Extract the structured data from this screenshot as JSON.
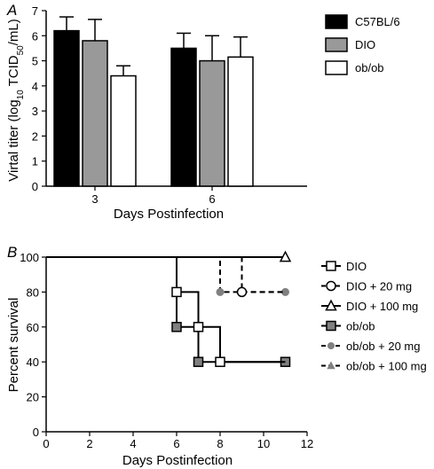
{
  "chart_data": [
    {
      "type": "bar",
      "panel_letter": "A",
      "xlabel": "Days Postinfection",
      "ylabel_parts": [
        "Virtal titer (log",
        "10",
        " TCID",
        "50",
        "/mL)"
      ],
      "categories": [
        "3",
        "6"
      ],
      "ylim": [
        0,
        7
      ],
      "yticks": [
        0,
        1,
        2,
        3,
        4,
        5,
        6,
        7
      ],
      "grid": false,
      "legend_position": "right",
      "series": [
        {
          "name": "C57BL/6",
          "color": "#000000",
          "values": [
            6.2,
            5.5
          ],
          "errors": [
            0.55,
            0.6
          ]
        },
        {
          "name": "DIO",
          "color": "#999999",
          "values": [
            5.8,
            5.0
          ],
          "errors": [
            0.85,
            1.0
          ]
        },
        {
          "name": "ob/ob",
          "color": "#ffffff",
          "values": [
            4.4,
            5.15
          ],
          "errors": [
            0.4,
            0.8
          ]
        }
      ]
    },
    {
      "type": "line",
      "panel_letter": "B",
      "xlabel": "Days Postinfection",
      "ylabel": "Percent survival",
      "xlim": [
        0,
        12
      ],
      "ylim": [
        0,
        100
      ],
      "xticks": [
        0,
        2,
        4,
        6,
        8,
        10,
        12
      ],
      "yticks": [
        0,
        20,
        40,
        60,
        80,
        100
      ],
      "grid": false,
      "legend_position": "right",
      "series": [
        {
          "name": "DIO",
          "style": "solid",
          "marker": "square-open",
          "steps": [
            [
              0,
              100
            ],
            [
              6,
              100
            ],
            [
              6,
              80
            ],
            [
              7,
              80
            ],
            [
              7,
              60
            ],
            [
              8,
              60
            ],
            [
              8,
              40
            ],
            [
              11,
              40
            ]
          ],
          "markers": [
            [
              6,
              80
            ],
            [
              7,
              60
            ],
            [
              8,
              40
            ]
          ]
        },
        {
          "name": "DIO + 20 mg",
          "style": "dashed",
          "marker": "circle-open",
          "steps": [
            [
              0,
              100
            ],
            [
              9,
              100
            ],
            [
              9,
              80
            ],
            [
              11,
              80
            ]
          ],
          "markers": [
            [
              9,
              80
            ]
          ]
        },
        {
          "name": "DIO + 100 mg",
          "style": "solid",
          "marker": "triangle-open",
          "steps": [
            [
              0,
              100
            ],
            [
              11,
              100
            ]
          ],
          "markers": [
            [
              11,
              100
            ]
          ]
        },
        {
          "name": "ob/ob",
          "style": "solid",
          "marker": "square-filled",
          "steps": [
            [
              0,
              100
            ],
            [
              6,
              100
            ],
            [
              6,
              60
            ],
            [
              7,
              60
            ],
            [
              7,
              40
            ],
            [
              11,
              40
            ]
          ],
          "markers": [
            [
              6,
              60
            ],
            [
              7,
              40
            ],
            [
              11,
              40
            ]
          ]
        },
        {
          "name": "ob/ob + 20 mg",
          "style": "dashed",
          "marker": "circle-filled",
          "steps": [
            [
              0,
              100
            ],
            [
              8,
              100
            ],
            [
              8,
              80
            ],
            [
              11,
              80
            ]
          ],
          "markers": [
            [
              8,
              80
            ],
            [
              11,
              80
            ]
          ]
        },
        {
          "name": "ob/ob + 100 mg",
          "style": "dashed",
          "marker": "triangle-filled",
          "steps": [
            [
              0,
              100
            ],
            [
              11,
              100
            ]
          ],
          "markers": []
        }
      ]
    }
  ]
}
